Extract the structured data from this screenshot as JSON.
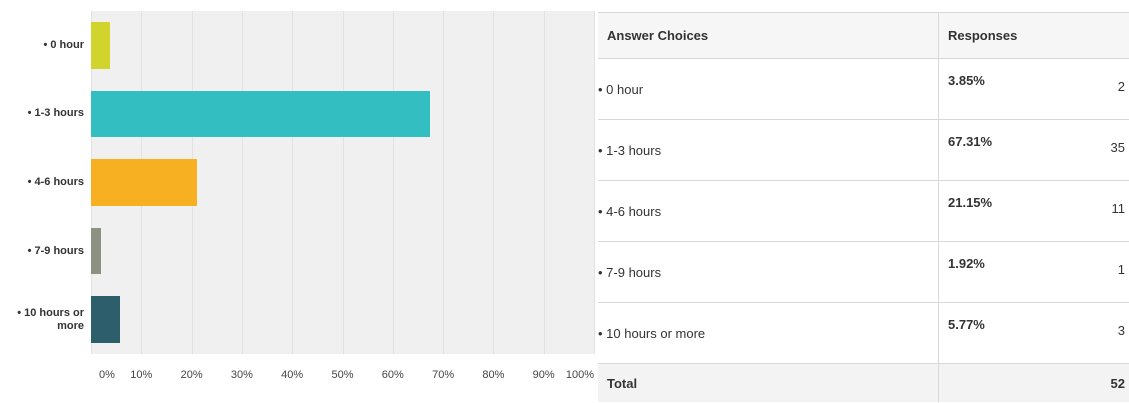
{
  "chart_data": {
    "type": "bar",
    "orientation": "horizontal",
    "categories": [
      "• 0 hour",
      "• 1-3 hours",
      "• 4-6 hours",
      "• 7-9 hours",
      "• 10 hours or more"
    ],
    "values": [
      3.85,
      67.31,
      21.15,
      1.92,
      5.77
    ],
    "colors": [
      "#d0d42c",
      "#33bfc1",
      "#f6b021",
      "#8c9282",
      "#2c5e6c"
    ],
    "xlim": [
      0,
      100
    ],
    "xticks": [
      {
        "value": 0,
        "label": "0%"
      },
      {
        "value": 10,
        "label": "10%"
      },
      {
        "value": 20,
        "label": "20%"
      },
      {
        "value": 30,
        "label": "30%"
      },
      {
        "value": 40,
        "label": "40%"
      },
      {
        "value": 50,
        "label": "50%"
      },
      {
        "value": 60,
        "label": "60%"
      },
      {
        "value": 70,
        "label": "70%"
      },
      {
        "value": 80,
        "label": "80%"
      },
      {
        "value": 90,
        "label": "90%"
      },
      {
        "value": 100,
        "label": "100%"
      }
    ],
    "grid": true
  },
  "table": {
    "header": [
      "Answer Choices",
      "Responses"
    ],
    "rows": [
      [
        "• 0 hour",
        "3.85%",
        2
      ],
      [
        "• 1-3 hours",
        "67.31%",
        35
      ],
      [
        "• 4-6 hours",
        "21.15%",
        11
      ],
      [
        "• 7-9 hours",
        "1.92%",
        1
      ],
      [
        "• 10 hours or more",
        "5.77%",
        3
      ]
    ],
    "total": [
      "Total",
      52
    ]
  }
}
